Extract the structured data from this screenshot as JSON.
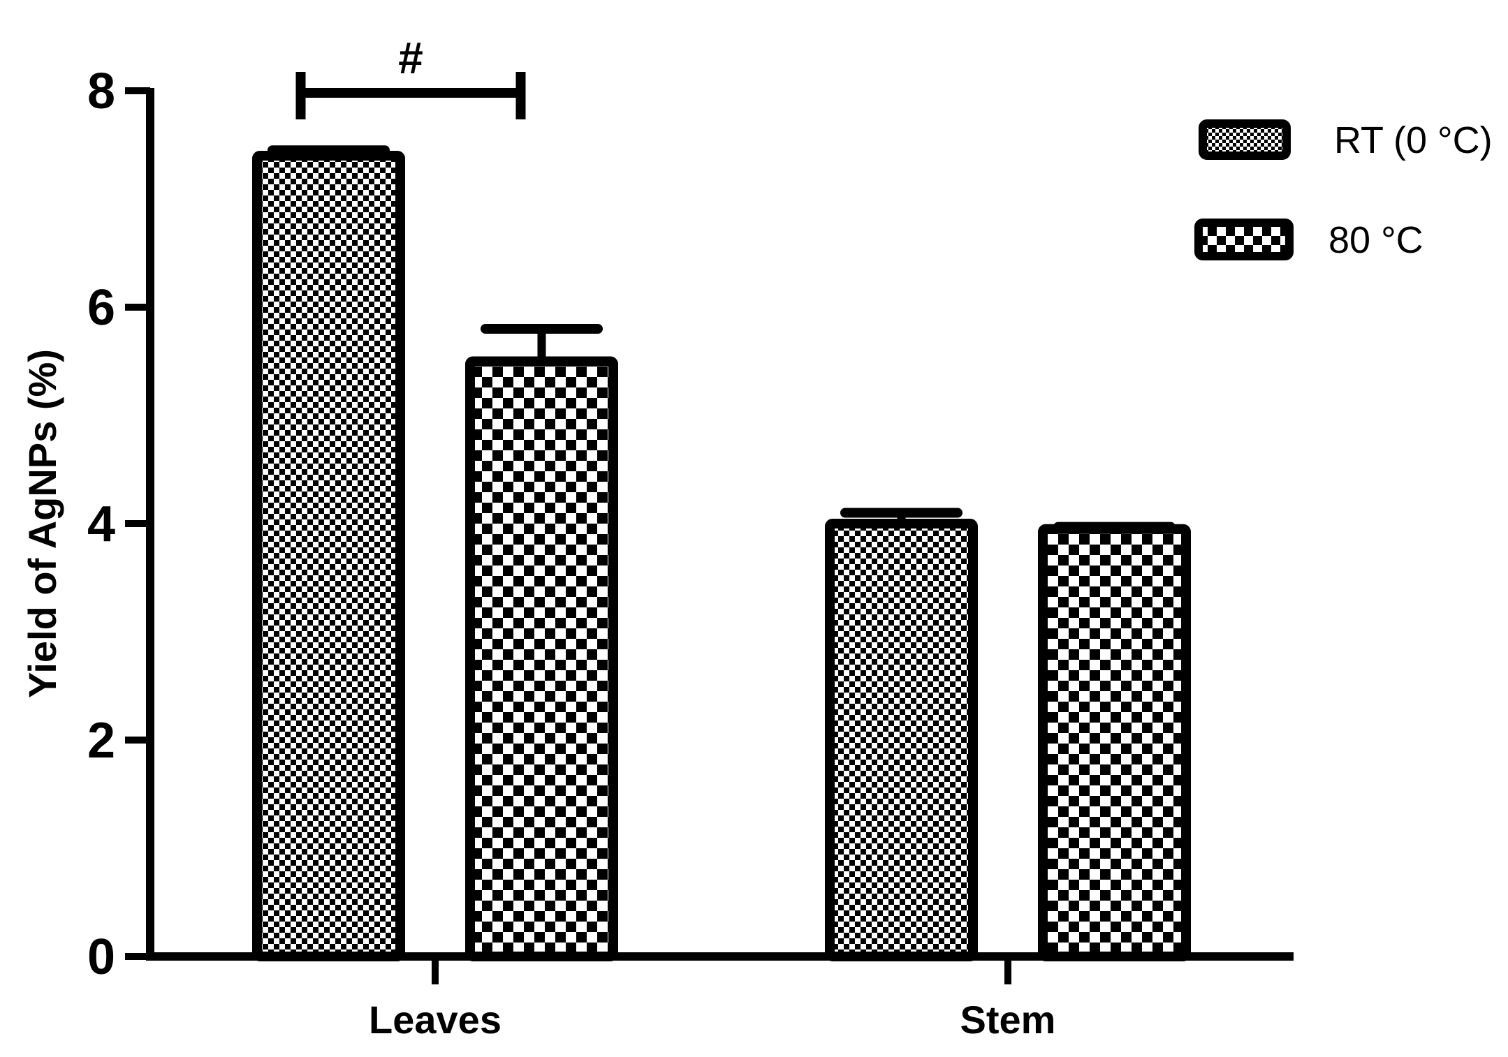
{
  "chart_data": {
    "type": "bar",
    "title": "",
    "xlabel": "",
    "ylabel": "Yield of AgNPs (%)",
    "ylim": [
      0,
      8
    ],
    "yticks": [
      0,
      2,
      4,
      6,
      8
    ],
    "grid": false,
    "legend_position": "top-right",
    "categories": [
      "Leaves",
      "Stem"
    ],
    "series": [
      {
        "name": "RT (0 °C)",
        "pattern": "fine-checker",
        "values": [
          7.4,
          4.0
        ],
        "errors": [
          0.05,
          0.1
        ]
      },
      {
        "name": "80 °C",
        "pattern": "coarse-checker",
        "values": [
          5.5,
          3.95
        ],
        "errors": [
          0.3,
          0.02
        ]
      }
    ],
    "annotations": [
      {
        "text": "#",
        "type": "significance-bracket",
        "category": "Leaves",
        "y": 7.75
      }
    ],
    "colors": {
      "ink": "#000000",
      "fill": "#ffffff"
    }
  }
}
